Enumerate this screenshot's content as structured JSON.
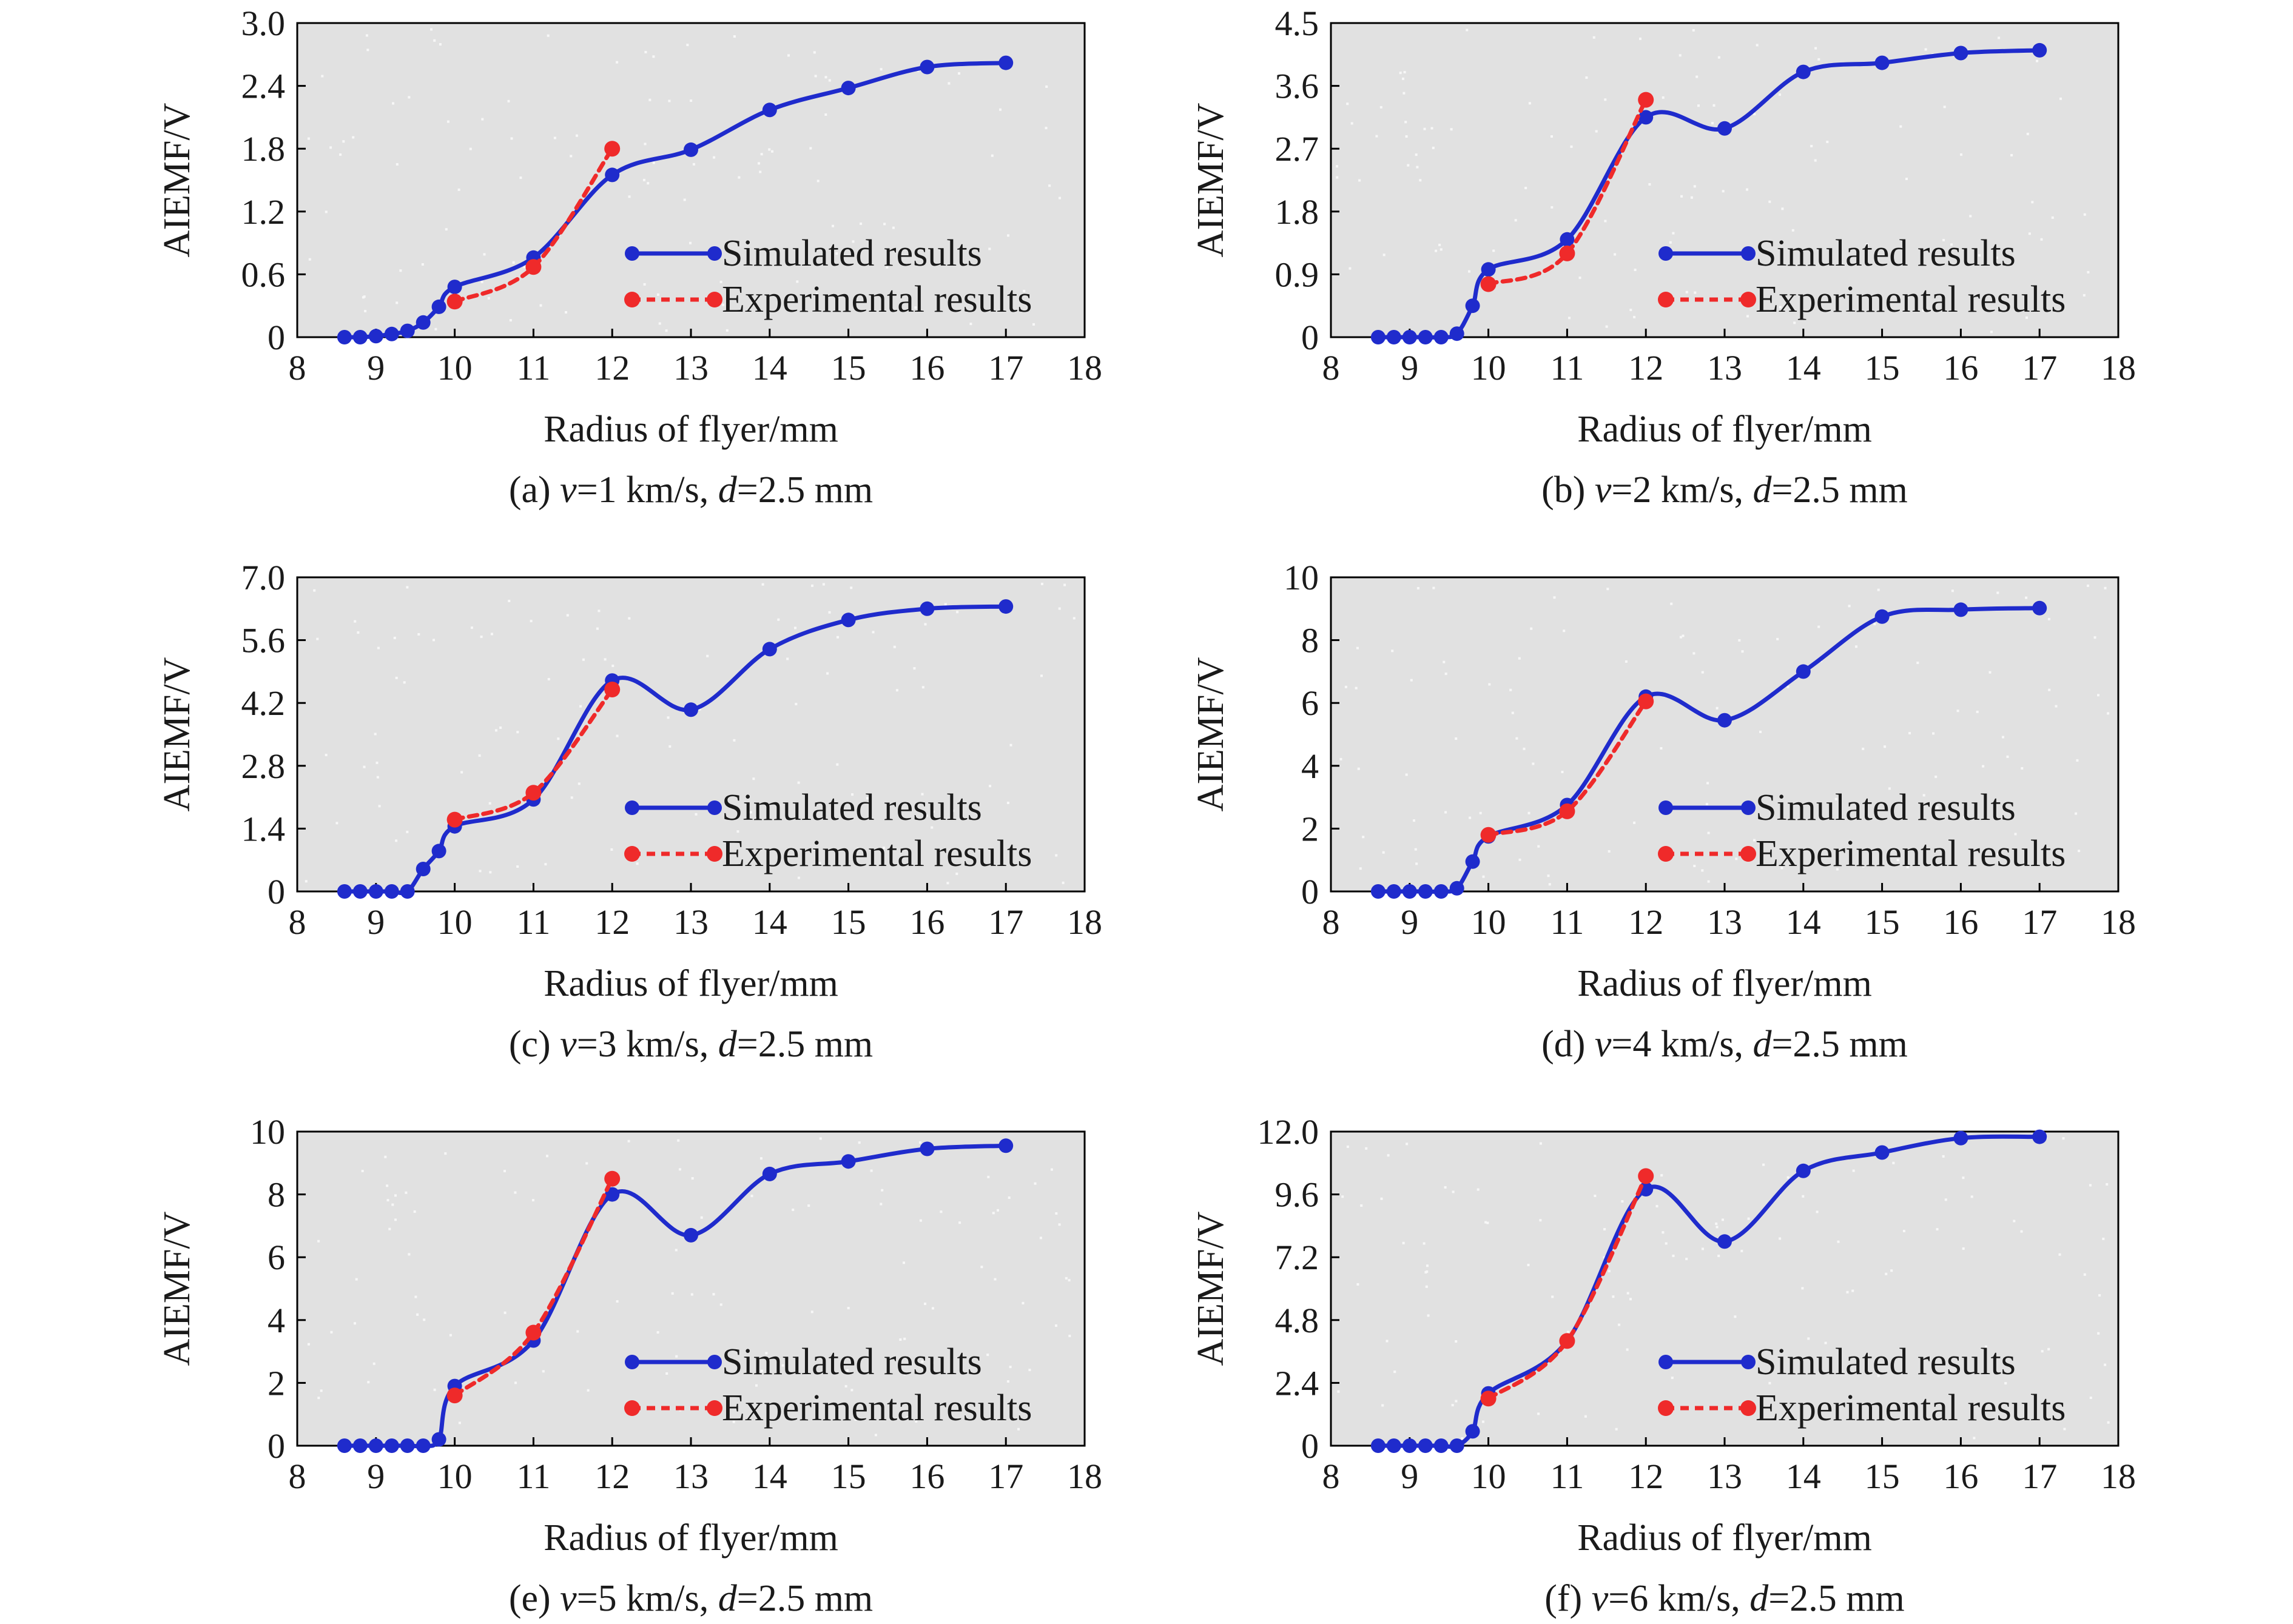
{
  "colors": {
    "plot_background": "#e1e1e1",
    "simulated": "#1f2bcc",
    "experimental": "#ef2a2a",
    "axis": "#000000"
  },
  "legend": {
    "simulated_label": "Simulated results",
    "experimental_label": "Experimental results"
  },
  "chart_data": [
    {
      "type": "line",
      "panel": "a",
      "caption_parts": [
        "(a) ",
        "v",
        "=1 km/s, ",
        "d",
        "=2.5 mm"
      ],
      "xlabel": "Radius of flyer/mm",
      "ylabel": "AIEMF/V",
      "xlim": [
        8,
        18
      ],
      "ylim": [
        0,
        3.0
      ],
      "x_ticks": [
        "8",
        "9",
        "10",
        "11",
        "12",
        "13",
        "14",
        "15",
        "16",
        "17",
        "18"
      ],
      "y_ticks": [
        "0",
        "0.6",
        "1.2",
        "1.8",
        "2.4",
        "3.0"
      ],
      "legend_position": "lower-right",
      "grid": false,
      "series": [
        {
          "name": "Simulated results",
          "style": "solid",
          "x": [
            8.6,
            8.8,
            9.0,
            9.2,
            9.4,
            9.6,
            9.8,
            10.0,
            11.0,
            12.0,
            13.0,
            14.0,
            15.0,
            16.0,
            17.0
          ],
          "y": [
            0,
            0,
            0.01,
            0.03,
            0.06,
            0.14,
            0.29,
            0.48,
            0.76,
            1.55,
            1.79,
            2.17,
            2.38,
            2.58,
            2.62
          ]
        },
        {
          "name": "Experimental results",
          "style": "dashed",
          "x": [
            10,
            11,
            12
          ],
          "y": [
            0.34,
            0.67,
            1.8
          ]
        }
      ]
    },
    {
      "type": "line",
      "panel": "b",
      "caption_parts": [
        "(b) ",
        "v",
        "=2 km/s, ",
        "d",
        "=2.5 mm"
      ],
      "xlabel": "Radius of flyer/mm",
      "ylabel": "AIEMF/V",
      "xlim": [
        8,
        18
      ],
      "ylim": [
        0,
        4.5
      ],
      "x_ticks": [
        "8",
        "9",
        "10",
        "11",
        "12",
        "13",
        "14",
        "15",
        "16",
        "17",
        "18"
      ],
      "y_ticks": [
        "0",
        "0.9",
        "1.8",
        "2.7",
        "3.6",
        "4.5"
      ],
      "legend_position": "lower-right",
      "grid": false,
      "series": [
        {
          "name": "Simulated results",
          "style": "solid",
          "x": [
            8.6,
            8.8,
            9.0,
            9.2,
            9.4,
            9.6,
            9.8,
            10.0,
            11.0,
            12.0,
            13.0,
            14.0,
            15.0,
            16.0,
            17.0
          ],
          "y": [
            0,
            0,
            0,
            0,
            0,
            0.05,
            0.45,
            0.97,
            1.4,
            3.15,
            2.99,
            3.8,
            3.93,
            4.07,
            4.11
          ]
        },
        {
          "name": "Experimental results",
          "style": "dashed",
          "x": [
            10,
            11,
            12
          ],
          "y": [
            0.76,
            1.2,
            3.4
          ]
        }
      ]
    },
    {
      "type": "line",
      "panel": "c",
      "caption_parts": [
        "(c) ",
        "v",
        "=3 km/s, ",
        "d",
        "=2.5 mm"
      ],
      "xlabel": "Radius of flyer/mm",
      "ylabel": "AIEMF/V",
      "xlim": [
        8,
        18
      ],
      "ylim": [
        0,
        7.0
      ],
      "x_ticks": [
        "8",
        "9",
        "10",
        "11",
        "12",
        "13",
        "14",
        "15",
        "16",
        "17",
        "18"
      ],
      "y_ticks": [
        "0",
        "1.4",
        "2.8",
        "4.2",
        "5.6",
        "7.0"
      ],
      "legend_position": "lower-right",
      "grid": false,
      "series": [
        {
          "name": "Simulated results",
          "style": "solid",
          "x": [
            8.6,
            8.8,
            9.0,
            9.2,
            9.4,
            9.6,
            9.8,
            10.0,
            11.0,
            12.0,
            13.0,
            14.0,
            15.0,
            16.0,
            17.0
          ],
          "y": [
            0,
            0,
            0,
            0,
            0,
            0.5,
            0.9,
            1.45,
            2.05,
            4.7,
            4.05,
            5.4,
            6.05,
            6.3,
            6.35
          ]
        },
        {
          "name": "Experimental results",
          "style": "dashed",
          "x": [
            10,
            11,
            12
          ],
          "y": [
            1.6,
            2.2,
            4.5
          ]
        }
      ]
    },
    {
      "type": "line",
      "panel": "d",
      "caption_parts": [
        "(d) ",
        "v",
        "=4 km/s, ",
        "d",
        "=2.5 mm"
      ],
      "xlabel": "Radius of flyer/mm",
      "ylabel": "AIEMF/V",
      "xlim": [
        8,
        18
      ],
      "ylim": [
        0,
        10
      ],
      "x_ticks": [
        "8",
        "9",
        "10",
        "11",
        "12",
        "13",
        "14",
        "15",
        "16",
        "17",
        "18"
      ],
      "y_ticks": [
        "0",
        "2",
        "4",
        "6",
        "8",
        "10"
      ],
      "legend_position": "lower-right",
      "grid": false,
      "series": [
        {
          "name": "Simulated results",
          "style": "solid",
          "x": [
            8.6,
            8.8,
            9.0,
            9.2,
            9.4,
            9.6,
            9.8,
            10.0,
            11.0,
            12.0,
            13.0,
            14.0,
            15.0,
            16.0,
            17.0
          ],
          "y": [
            0,
            0,
            0,
            0,
            0,
            0.1,
            0.95,
            1.75,
            2.75,
            6.2,
            5.45,
            7.0,
            8.75,
            8.97,
            9.02
          ]
        },
        {
          "name": "Experimental results",
          "style": "dashed",
          "x": [
            10,
            11,
            12
          ],
          "y": [
            1.8,
            2.55,
            6.05
          ]
        }
      ]
    },
    {
      "type": "line",
      "panel": "e",
      "caption_parts": [
        "(e) ",
        "v",
        "=5 km/s, ",
        "d",
        "=2.5 mm"
      ],
      "xlabel": "Radius of flyer/mm",
      "ylabel": "AIEMF/V",
      "xlim": [
        8,
        18
      ],
      "ylim": [
        0,
        10
      ],
      "x_ticks": [
        "8",
        "9",
        "10",
        "11",
        "12",
        "13",
        "14",
        "15",
        "16",
        "17",
        "18"
      ],
      "y_ticks": [
        "0",
        "2",
        "4",
        "6",
        "8",
        "10"
      ],
      "legend_position": "lower-right",
      "grid": false,
      "series": [
        {
          "name": "Simulated results",
          "style": "solid",
          "x": [
            8.6,
            8.8,
            9.0,
            9.2,
            9.4,
            9.6,
            9.8,
            10.0,
            11.0,
            12.0,
            13.0,
            14.0,
            15.0,
            16.0,
            17.0
          ],
          "y": [
            0,
            0,
            0,
            0,
            0,
            0,
            0.2,
            1.9,
            3.35,
            8.0,
            6.7,
            8.65,
            9.05,
            9.45,
            9.55
          ]
        },
        {
          "name": "Experimental results",
          "style": "dashed",
          "x": [
            10,
            11,
            12
          ],
          "y": [
            1.6,
            3.6,
            8.5
          ]
        }
      ]
    },
    {
      "type": "line",
      "panel": "f",
      "caption_parts": [
        "(f) ",
        "v",
        "=6 km/s, ",
        "d",
        "=2.5 mm"
      ],
      "xlabel": "Radius of flyer/mm",
      "ylabel": "AIEMF/V",
      "xlim": [
        8,
        18
      ],
      "ylim": [
        0,
        12.0
      ],
      "x_ticks": [
        "8",
        "9",
        "10",
        "11",
        "12",
        "13",
        "14",
        "15",
        "16",
        "17",
        "18"
      ],
      "y_ticks": [
        "0",
        "2.4",
        "4.8",
        "7.2",
        "9.6",
        "12.0"
      ],
      "legend_position": "lower-right",
      "grid": false,
      "series": [
        {
          "name": "Simulated results",
          "style": "solid",
          "x": [
            8.6,
            8.8,
            9.0,
            9.2,
            9.4,
            9.6,
            9.8,
            10.0,
            11.0,
            12.0,
            13.0,
            14.0,
            15.0,
            16.0,
            17.0
          ],
          "y": [
            0,
            0,
            0,
            0,
            0,
            0,
            0.55,
            2.0,
            4.0,
            9.8,
            7.8,
            10.5,
            11.2,
            11.75,
            11.8
          ]
        },
        {
          "name": "Experimental results",
          "style": "dashed",
          "x": [
            10,
            11,
            12
          ],
          "y": [
            1.8,
            4.0,
            10.3
          ]
        }
      ]
    }
  ]
}
